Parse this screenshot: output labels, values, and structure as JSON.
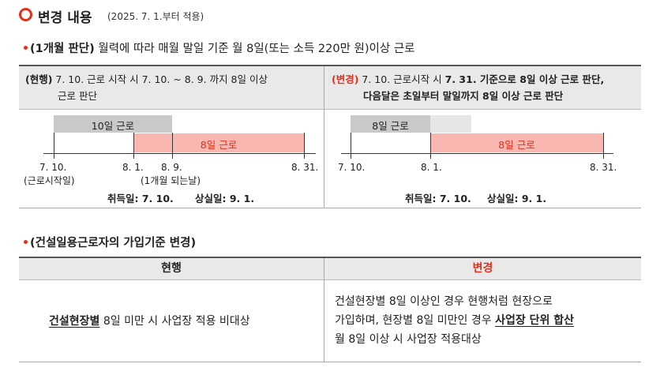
{
  "header": {
    "title": "변경 내용",
    "subtitle": "(2025. 7. 1.부터 적용)"
  },
  "section1": {
    "head_bold": "(1개월 판단)",
    "head_rest": " 월력에 따라 매월 말일 기준 월 8일(또는 소득 220만 원)이상 근로",
    "left": {
      "prefix": "(현행)",
      "text_line1": " 7. 10. 근로 시작 시 7. 10. ~ 8. 9. 까지 8일 이상",
      "text_line2": "근로 판단",
      "bar_gray_label": "10일 근로",
      "bar_pink_label": "8일 근로",
      "ticks": [
        "7. 10.",
        "8. 1.",
        "8. 9.",
        "8. 31."
      ],
      "tick_note1": "(근로시작일)",
      "tick_note2": "(1개월 되는날)",
      "acquire": "취득일: 7. 10.",
      "lose": "상실일: 9. 1."
    },
    "right": {
      "prefix": "(변경)",
      "text_line1_a": " 7. 10. 근로시작 시 ",
      "text_line1_b": "7. 31. 기준으로 8일 이상 근로 판단,",
      "text_line2": "다음달은 초일부터 말일까지 8일 이상 근로 판단",
      "bar_gray_label": "8일 근로",
      "bar_pink_label": "8일 근로",
      "ticks": [
        "7. 10.",
        "8. 1.",
        "8. 31."
      ],
      "acquire": "취득일: 7. 10.",
      "lose": "상실일: 9. 1."
    }
  },
  "section2": {
    "head": "(건설일용근로자의 가입기준 변경)",
    "col_current": "현행",
    "col_change": "변경",
    "current_u": "건설현장별",
    "current_rest": " 8일 미만 시 사업장 적용 비대상",
    "change_line1": "건설현장별 8일 이상인 경우 현행처럼 현장으로",
    "change_line2_a": "가입하며, 현장별 8일 미만인 경우 ",
    "change_line2_u": "사업장 단위 합산",
    "change_line3": "월 8일 이상 시 사업장 적용대상"
  },
  "colors": {
    "accent": "#e2311d",
    "pink_bar": "#f8b7b0",
    "gray_bar": "#c9c9c9",
    "header_bg": "#e9e9e9"
  }
}
